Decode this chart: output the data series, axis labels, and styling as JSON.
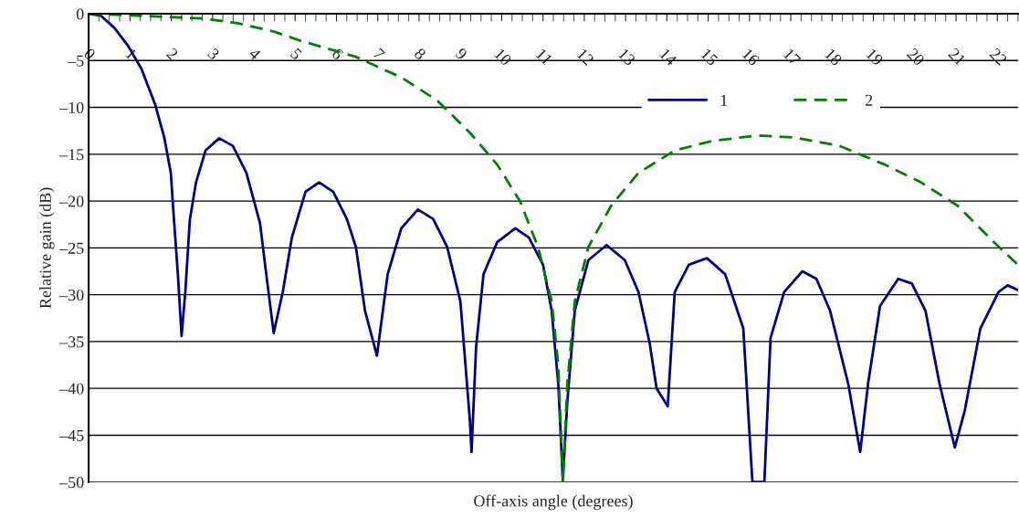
{
  "chart_data": {
    "type": "line",
    "xlabel": "Off-axis angle (degrees)",
    "ylabel": "Relative gain (dB)",
    "xlim": [
      0,
      22.5
    ],
    "xticks": [
      0,
      1,
      2,
      3,
      4,
      5,
      6,
      7,
      8,
      9,
      10,
      11,
      12,
      13,
      14,
      15,
      16,
      17,
      18,
      19,
      20,
      21,
      22
    ],
    "ylim": [
      -50,
      0
    ],
    "yticks": [
      0,
      {
        "value": -5,
        "label": "–5"
      },
      {
        "value": -10,
        "label": "–10"
      },
      {
        "value": -15,
        "label": "–15"
      },
      {
        "value": -20,
        "label": "–20"
      },
      {
        "value": -25,
        "label": "–25"
      },
      {
        "value": -30,
        "label": "–30"
      },
      {
        "value": -35,
        "label": "–35"
      },
      {
        "value": -40,
        "label": "–40"
      },
      {
        "value": -45,
        "label": "–45"
      },
      {
        "value": -50,
        "label": "–50"
      }
    ],
    "grid": "y",
    "legend": "top right",
    "series": [
      {
        "name": "1",
        "color": "#000080",
        "line_style": "solid",
        "x": [
          0,
          0.29,
          0.62,
          0.95,
          1.28,
          1.61,
          1.83,
          1.99,
          2.05,
          2.16,
          2.25,
          2.34,
          2.45,
          2.6,
          2.83,
          3.16,
          3.49,
          3.82,
          4.15,
          4.3,
          4.48,
          4.7,
          4.92,
          5.25,
          5.58,
          5.92,
          6.25,
          6.47,
          6.69,
          6.98,
          7.24,
          7.57,
          7.97,
          8.34,
          8.68,
          9.0,
          9.23,
          9.27,
          9.38,
          9.56,
          9.89,
          10.33,
          10.66,
          11.0,
          11.21,
          11.37,
          11.48,
          11.59,
          11.77,
          12.1,
          12.54,
          12.98,
          13.31,
          13.58,
          13.75,
          14.02,
          14.19,
          14.53,
          14.97,
          15.41,
          15.85,
          16.07,
          16.36,
          16.51,
          16.84,
          17.28,
          17.62,
          17.95,
          18.39,
          18.68,
          18.87,
          19.16,
          19.6,
          19.93,
          20.26,
          20.6,
          20.97,
          21.21,
          21.59,
          22.03,
          22.25,
          22.5
        ],
        "values": [
          0,
          -0.2,
          -1.5,
          -3.4,
          -5.9,
          -9.7,
          -13.2,
          -17,
          -21,
          -27.8,
          -34.4,
          -29.7,
          -22,
          -18,
          -14.6,
          -13.3,
          -14.1,
          -17,
          -22.4,
          -27.8,
          -34.1,
          -29.7,
          -23.9,
          -19,
          -18,
          -19,
          -21.9,
          -24.9,
          -31.7,
          -36.5,
          -27.8,
          -22.9,
          -20.9,
          -21.9,
          -24.9,
          -30.7,
          -43.4,
          -46.8,
          -35.6,
          -27.8,
          -24.4,
          -22.9,
          -23.9,
          -26.8,
          -31.7,
          -39.5,
          -49.7,
          -41.4,
          -31.7,
          -26.3,
          -24.7,
          -26.3,
          -29.7,
          -35.1,
          -40,
          -41.9,
          -29.7,
          -26.8,
          -26.1,
          -27.8,
          -33.6,
          -50,
          -50,
          -34.6,
          -29.7,
          -27.5,
          -28.3,
          -31.7,
          -39.5,
          -46.8,
          -39.5,
          -31.2,
          -28.3,
          -28.8,
          -31.7,
          -39.5,
          -46.3,
          -42.4,
          -33.6,
          -29.7,
          -29,
          -29.5
        ]
      },
      {
        "name": "2",
        "color": "#008000",
        "line_style": "dashed",
        "x": [
          0,
          1.17,
          2.72,
          3.6,
          4.48,
          5.14,
          6.47,
          7.57,
          8.45,
          9.23,
          9.89,
          10.44,
          10.88,
          11.21,
          11.37,
          11.48,
          11.59,
          11.77,
          12.1,
          12.65,
          13.31,
          14.19,
          15.08,
          16.18,
          17.06,
          18.17,
          19.27,
          20.15,
          21.04,
          21.92,
          22.5
        ],
        "values": [
          0,
          -0.2,
          -0.5,
          -1,
          -1.9,
          -2.9,
          -4.6,
          -6.8,
          -9.3,
          -12.7,
          -16.1,
          -20,
          -24.9,
          -30.7,
          -37.5,
          -50,
          -39.5,
          -30.7,
          -24.9,
          -20.5,
          -17,
          -14.6,
          -13.6,
          -13,
          -13.2,
          -14.1,
          -16.1,
          -18,
          -20.5,
          -24.4,
          -26.8
        ]
      }
    ]
  }
}
